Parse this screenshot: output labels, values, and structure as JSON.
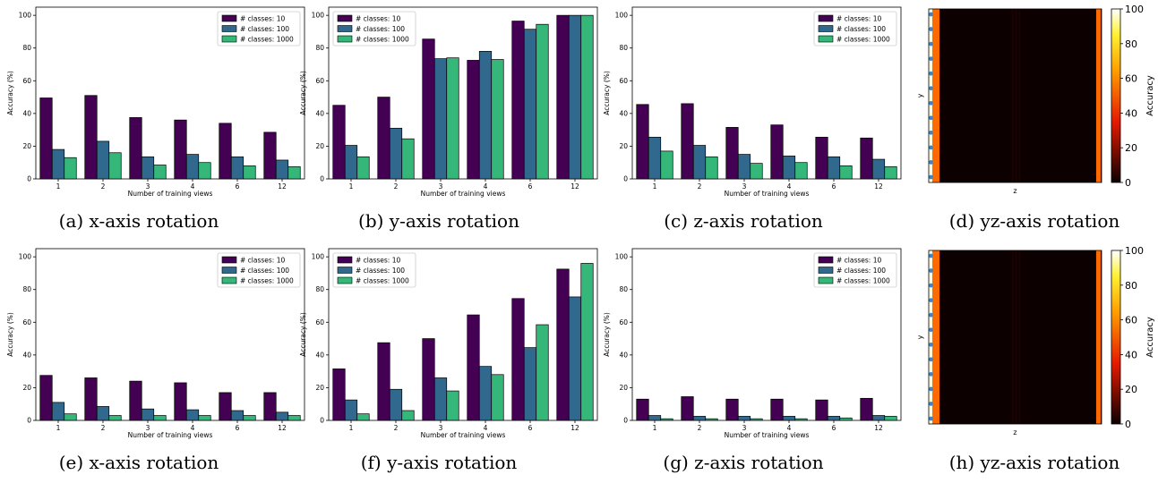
{
  "chart_data": [
    {
      "type": "bar",
      "caption": "(a) x-axis rotation",
      "xlabel": "Number of training views",
      "ylabel": "Accuracy (%)",
      "ylim": [
        0,
        105
      ],
      "yticks": [
        0,
        20,
        40,
        60,
        80,
        100
      ],
      "categories": [
        "1",
        "2",
        "3",
        "4",
        "6",
        "12"
      ],
      "legend_position": "top-right",
      "series": [
        {
          "name": "# classes: 10",
          "values": [
            49.5,
            51,
            37.5,
            36,
            34,
            28.5
          ]
        },
        {
          "name": "# classes: 100",
          "values": [
            18,
            23,
            13.5,
            15,
            13.5,
            11.5
          ]
        },
        {
          "name": "# classes: 1000",
          "values": [
            13,
            16,
            8.5,
            10,
            8,
            7.5
          ]
        }
      ]
    },
    {
      "type": "bar",
      "caption": "(b) y-axis rotation",
      "xlabel": "Number of training views",
      "ylabel": "Accuracy (%)",
      "ylim": [
        0,
        105
      ],
      "yticks": [
        0,
        20,
        40,
        60,
        80,
        100
      ],
      "categories": [
        "1",
        "2",
        "3",
        "4",
        "6",
        "12"
      ],
      "legend_position": "top-left",
      "series": [
        {
          "name": "# classes: 10",
          "values": [
            45,
            50,
            85.5,
            72.5,
            96.5,
            100
          ]
        },
        {
          "name": "# classes: 100",
          "values": [
            20.5,
            31,
            73.5,
            78,
            91.5,
            100
          ]
        },
        {
          "name": "# classes: 1000",
          "values": [
            13.5,
            24.5,
            74,
            73,
            94.5,
            100
          ]
        }
      ]
    },
    {
      "type": "bar",
      "caption": "(c) z-axis rotation",
      "xlabel": "Number of training views",
      "ylabel": "Accuracy (%)",
      "ylim": [
        0,
        105
      ],
      "yticks": [
        0,
        20,
        40,
        60,
        80,
        100
      ],
      "categories": [
        "1",
        "2",
        "3",
        "4",
        "6",
        "12"
      ],
      "legend_position": "top-right",
      "series": [
        {
          "name": "# classes: 10",
          "values": [
            45.5,
            46,
            31.5,
            33,
            25.5,
            25
          ]
        },
        {
          "name": "# classes: 100",
          "values": [
            25.5,
            20.5,
            15,
            14,
            13.5,
            12
          ]
        },
        {
          "name": "# classes: 1000",
          "values": [
            17,
            13.5,
            9.5,
            10,
            8,
            7.5
          ]
        }
      ]
    },
    {
      "type": "heatmap",
      "caption": "(d) yz-axis rotation",
      "xlabel": "z",
      "ylabel": "y",
      "colorbar_label": "Accuracy",
      "colorbar_range": [
        0,
        100
      ],
      "colorbar_ticks": [
        0,
        20,
        40,
        60,
        80,
        100
      ],
      "colormap": "hot",
      "description_values": {
        "left_edge_column": 100,
        "second_column": 60,
        "background": 3,
        "right_edge_column": 60
      },
      "dots_on_left_edge": 12
    },
    {
      "type": "bar",
      "caption": "(e) x-axis rotation",
      "xlabel": "Number of training views",
      "ylabel": "Accuracy (%)",
      "ylim": [
        0,
        105
      ],
      "yticks": [
        0,
        20,
        40,
        60,
        80,
        100
      ],
      "categories": [
        "1",
        "2",
        "3",
        "4",
        "6",
        "12"
      ],
      "legend_position": "top-right",
      "series": [
        {
          "name": "# classes: 10",
          "values": [
            27.5,
            26,
            24,
            23,
            17,
            17
          ]
        },
        {
          "name": "# classes: 100",
          "values": [
            11,
            8.5,
            7,
            6.5,
            6,
            5
          ]
        },
        {
          "name": "# classes: 1000",
          "values": [
            4,
            3,
            3,
            3,
            3,
            3
          ]
        }
      ]
    },
    {
      "type": "bar",
      "caption": "(f) y-axis rotation",
      "xlabel": "Number of training views",
      "ylabel": "Accuracy (%)",
      "ylim": [
        0,
        105
      ],
      "yticks": [
        0,
        20,
        40,
        60,
        80,
        100
      ],
      "categories": [
        "1",
        "2",
        "3",
        "4",
        "6",
        "12"
      ],
      "legend_position": "top-left",
      "series": [
        {
          "name": "# classes: 10",
          "values": [
            31.5,
            47.5,
            50,
            64.5,
            74.5,
            92.5
          ]
        },
        {
          "name": "# classes: 100",
          "values": [
            12.5,
            19,
            26,
            33,
            44.5,
            75.5
          ]
        },
        {
          "name": "# classes: 1000",
          "values": [
            4,
            6,
            18,
            28,
            58.5,
            96
          ]
        }
      ]
    },
    {
      "type": "bar",
      "caption": "(g) z-axis rotation",
      "xlabel": "Number of training views",
      "ylabel": "Accuracy (%)",
      "ylim": [
        0,
        105
      ],
      "yticks": [
        0,
        20,
        40,
        60,
        80,
        100
      ],
      "categories": [
        "1",
        "2",
        "3",
        "4",
        "6",
        "12"
      ],
      "legend_position": "top-right",
      "series": [
        {
          "name": "# classes: 10",
          "values": [
            13,
            14.5,
            13,
            13,
            12.5,
            13.5
          ]
        },
        {
          "name": "# classes: 100",
          "values": [
            3,
            2.5,
            2.5,
            2.5,
            2.5,
            3
          ]
        },
        {
          "name": "# classes: 1000",
          "values": [
            1,
            1,
            1,
            1,
            1.5,
            2.5
          ]
        }
      ]
    },
    {
      "type": "heatmap",
      "caption": "(h) yz-axis rotation",
      "xlabel": "z",
      "ylabel": "y",
      "colorbar_label": "Accuracy",
      "colorbar_range": [
        0,
        100
      ],
      "colorbar_ticks": [
        0,
        20,
        40,
        60,
        80,
        100
      ],
      "colormap": "hot",
      "description_values": {
        "left_edge_column": 100,
        "second_column": 60,
        "background": 3,
        "right_edge_column": 60
      },
      "dots_on_left_edge": 12
    }
  ],
  "colors": {
    "series": [
      "#440154",
      "#31688e",
      "#35b779"
    ],
    "dots": "#3a86c8"
  }
}
